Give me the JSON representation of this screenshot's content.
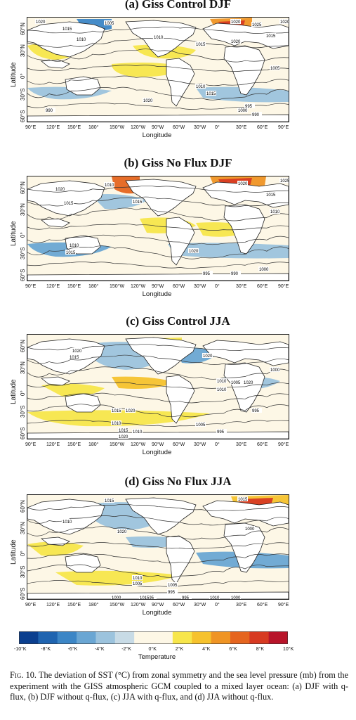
{
  "panels": [
    {
      "title": "(a) Giss Control DJF"
    },
    {
      "title": "(b) Giss No Flux DJF"
    },
    {
      "title": "(c) Giss Control JJA"
    },
    {
      "title": "(d) Giss No Flux JJA"
    }
  ],
  "axes": {
    "ylabel": "Latitude",
    "xlabel": "Longitude",
    "yticks": [
      "60°N",
      "30°N",
      "0°",
      "30°S",
      "60°S"
    ],
    "xticks": [
      "90°E",
      "120°E",
      "150°E",
      "180°",
      "150°W",
      "120°W",
      "90°W",
      "60°W",
      "30°W",
      "0°",
      "30°E",
      "60°E",
      "90°E"
    ]
  },
  "colorbar": {
    "label": "Temperature",
    "ticks": [
      "-10°K",
      "-8°K",
      "-6°K",
      "-4°K",
      "-2°K",
      "0°K",
      "2°K",
      "4°K",
      "6°K",
      "8°K",
      "10°K"
    ],
    "colors": [
      "#0b3f8f",
      "#1f64b0",
      "#3c86c6",
      "#6aa6d3",
      "#9cc3dd",
      "#c8dbe6",
      "#fdf7e6",
      "#fdf7e6",
      "#f7e64b",
      "#f6c22d",
      "#ef9424",
      "#e5651f",
      "#d73a22",
      "#b8142a"
    ]
  },
  "contours": {
    "a": [
      "1020",
      "1015",
      "1010",
      "1005",
      "1020",
      "1025",
      "1015",
      "1020",
      "1010",
      "1015",
      "1020",
      "990",
      "1010",
      "1015",
      "1020",
      "1000",
      "995",
      "990",
      "1005"
    ],
    "b": [
      "1020",
      "1015",
      "1010",
      "1015",
      "1020",
      "1025",
      "1015",
      "1010",
      "1015",
      "1020",
      "995",
      "990",
      "1000",
      "1010"
    ],
    "c": [
      "1020",
      "1015",
      "1020",
      "1010",
      "1010",
      "1015",
      "1020",
      "1010",
      "1015",
      "1020",
      "1010",
      "1005",
      "995",
      "1000",
      "995",
      "1005",
      "1020"
    ],
    "d": [
      "1015",
      "1010",
      "1020",
      "1015",
      "1000",
      "1010",
      "1005",
      "995",
      "1000",
      "1015",
      "1010",
      "1005",
      "995",
      "995",
      "1000"
    ]
  },
  "caption": {
    "fig": "Fig. 10.",
    "text": "The deviation of SST (°C) from zonal symmetry and the sea level pressure (mb) from the experiment with the GISS atmospheric GCM coupled to a mixed layer ocean: (a) DJF with q-flux, (b) DJF without q-flux, (c) JJA with q-flux, and (d) JJA without q-flux."
  }
}
